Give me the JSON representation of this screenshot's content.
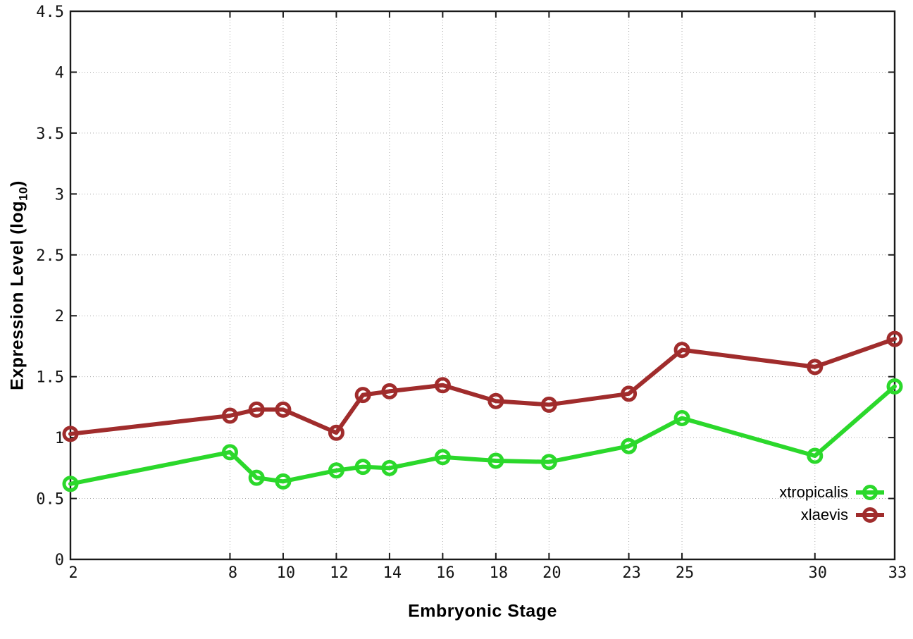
{
  "chart_data": {
    "type": "line",
    "title": "",
    "xlabel": "Embryonic Stage",
    "ylabel": "Expression Level (log10)",
    "ylabel_parts": {
      "main": "Expression Level (log",
      "sub": "10",
      "end": ")"
    },
    "xlim": [
      2,
      33
    ],
    "ylim": [
      0,
      4.5
    ],
    "x_ticks": [
      2,
      8,
      10,
      12,
      14,
      16,
      18,
      20,
      23,
      25,
      30,
      33
    ],
    "y_ticks": [
      0,
      0.5,
      1,
      1.5,
      2,
      2.5,
      3,
      3.5,
      4,
      4.5
    ],
    "y_tick_labels": [
      "0",
      "0.5",
      "1",
      "1.5",
      "2",
      "2.5",
      "3",
      "3.5",
      "4",
      "4.5"
    ],
    "grid": true,
    "legend_position": "inside-right-lower",
    "x": [
      2,
      8,
      9,
      10,
      12,
      13,
      14,
      16,
      18,
      20,
      23,
      25,
      30,
      33
    ],
    "series": [
      {
        "name": "xtropicalis",
        "color": "#2bd82b",
        "values": [
          0.62,
          0.88,
          0.67,
          0.64,
          0.73,
          0.76,
          0.75,
          0.84,
          0.81,
          0.8,
          0.93,
          1.16,
          0.85,
          1.42
        ]
      },
      {
        "name": "xlaevis",
        "color": "#a02c2c",
        "values": [
          1.03,
          1.18,
          1.23,
          1.23,
          1.04,
          1.35,
          1.38,
          1.43,
          1.3,
          1.27,
          1.36,
          1.72,
          1.58,
          1.81
        ]
      }
    ]
  }
}
